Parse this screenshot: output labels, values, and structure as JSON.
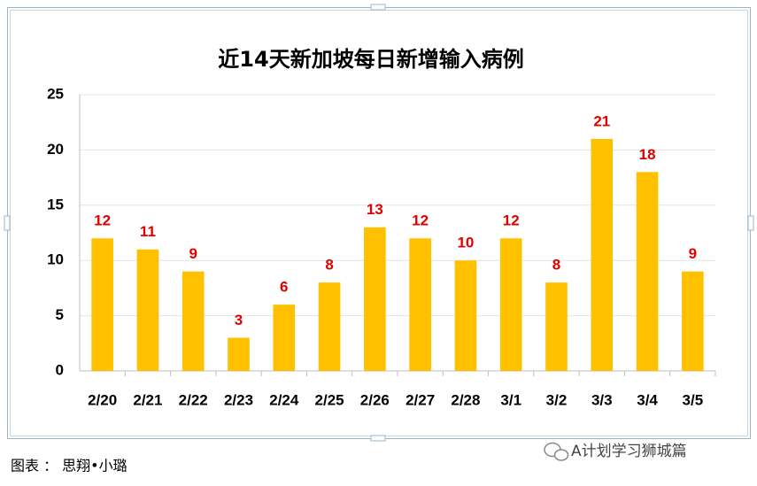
{
  "chart_data": {
    "type": "bar",
    "title": "近14天新加坡每日新增输入病例",
    "categories": [
      "2/20",
      "2/21",
      "2/22",
      "2/23",
      "2/24",
      "2/25",
      "2/26",
      "2/27",
      "2/28",
      "3/1",
      "3/2",
      "3/3",
      "3/4",
      "3/5"
    ],
    "values": [
      12,
      11,
      9,
      3,
      6,
      8,
      13,
      12,
      10,
      12,
      8,
      21,
      18,
      9
    ],
    "color": "#ffc000",
    "label_color": "#e00000",
    "ylim": [
      0,
      25
    ],
    "yticks": [
      0,
      5,
      10,
      15,
      20,
      25
    ],
    "grid": true
  },
  "caption": "图表 ： 思翔•小璐",
  "watermark": "A计划学习狮城篇"
}
